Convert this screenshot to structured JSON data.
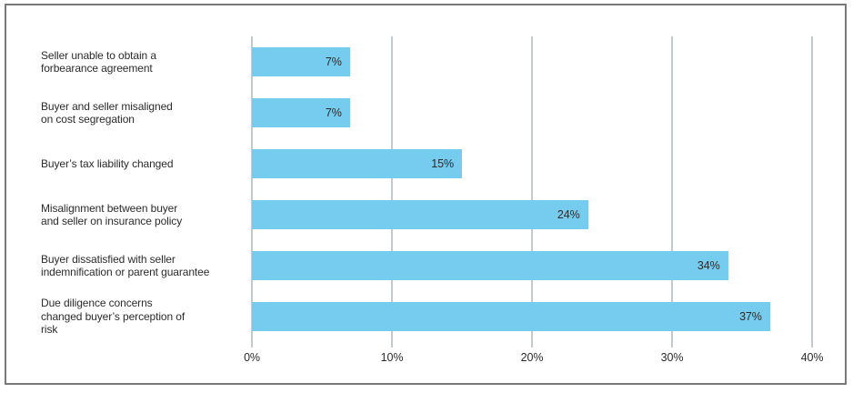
{
  "chart_data": {
    "type": "bar",
    "orientation": "horizontal",
    "title": "",
    "xlabel": "",
    "ylabel": "",
    "grid": true,
    "legend": false,
    "xlim": [
      0,
      40
    ],
    "categories": [
      "Seller unable to obtain a\nforbearance agreement",
      "Buyer and seller misaligned\non cost segregation",
      "Buyer’s tax liability changed",
      "Misalignment between buyer\nand seller on insurance policy",
      "Buyer dissatisfied with seller\nindemnification or parent guarantee",
      "Due diligence concerns\nchanged buyer’s perception of\nrisk"
    ],
    "values": [
      7,
      7,
      15,
      24,
      34,
      37
    ],
    "value_labels": [
      "7%",
      "7%",
      "15%",
      "24%",
      "34%",
      "37%"
    ],
    "x_ticks": [
      {
        "value": 0,
        "label": "0%"
      },
      {
        "value": 10,
        "label": "10%"
      },
      {
        "value": 20,
        "label": "20%"
      },
      {
        "value": 30,
        "label": "30%"
      },
      {
        "value": 40,
        "label": "40%"
      }
    ],
    "colors": {
      "bar": "#76CCEF",
      "gridline": "#C4C9CD",
      "text": "#2B2B2B",
      "frame_border": "#77797C",
      "background": "#FFFFFF"
    }
  }
}
